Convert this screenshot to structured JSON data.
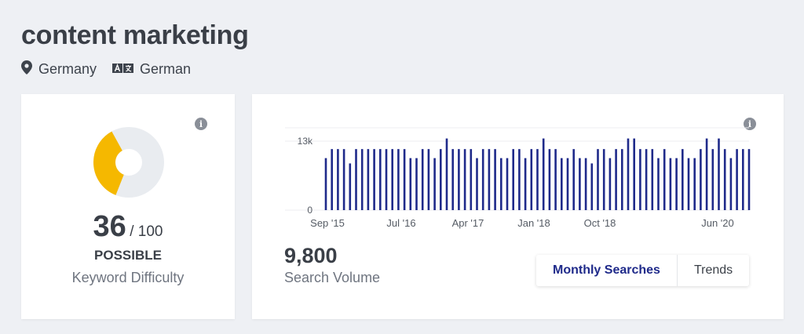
{
  "keyword": "content marketing",
  "location": {
    "icon": "map-pin-icon",
    "label": "Germany"
  },
  "language": {
    "icon": "translate-icon",
    "label": "German"
  },
  "difficulty": {
    "score": "36",
    "max_label": "/ 100",
    "level": "POSSIBLE",
    "label": "Keyword Difficulty",
    "fill_fraction": 0.36,
    "colors": {
      "filled": "#f5b800",
      "track": "#e9ecf0"
    }
  },
  "volume": {
    "value": "9,800",
    "label": "Search Volume"
  },
  "toggle": {
    "monthly_label": "Monthly Searches",
    "trends_label": "Trends",
    "active": "monthly"
  },
  "chart_data": {
    "type": "bar",
    "title": "",
    "xlabel": "",
    "ylabel": "",
    "ylim": [
      0,
      13000
    ],
    "ytick_labels": [
      "13k",
      "0"
    ],
    "xtick_labels": [
      "Sep '15",
      "Jul '16",
      "Apr '17",
      "Jan '18",
      "Oct '18",
      "Jun '20"
    ],
    "bar_color": "#1f2a8a",
    "values": [
      9800,
      11500,
      11500,
      11500,
      8800,
      11500,
      11500,
      11500,
      11500,
      11500,
      11500,
      11500,
      11500,
      11500,
      9800,
      9800,
      11500,
      11500,
      9800,
      11500,
      13500,
      11500,
      11500,
      11500,
      11500,
      9800,
      11500,
      11500,
      11500,
      9800,
      9800,
      11500,
      11500,
      9800,
      11500,
      11500,
      13500,
      11500,
      11500,
      9800,
      9800,
      11500,
      9800,
      9800,
      8800,
      11500,
      11500,
      9800,
      11500,
      11500,
      13500,
      13500,
      11500,
      11500,
      11500,
      9800,
      11500,
      9800,
      9800,
      11500,
      9800,
      9800,
      11500,
      13500,
      11500,
      13500,
      11500,
      9800,
      11500,
      11500,
      11500
    ]
  }
}
